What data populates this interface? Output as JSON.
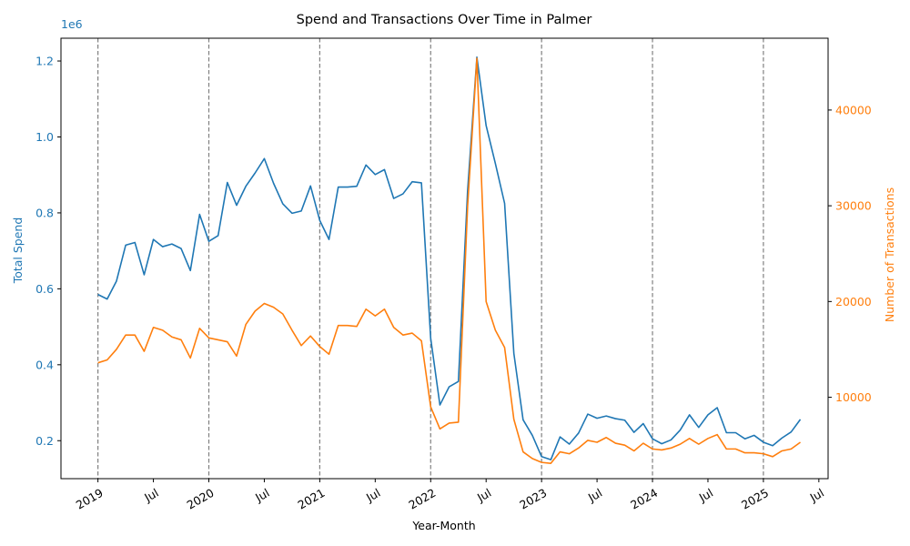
{
  "chart_data": {
    "type": "line",
    "title": "Spend and Transactions Over Time in Palmer",
    "xlabel": "Year-Month",
    "ylabel_left": "Total Spend",
    "ylabel_right": "Number of Transactions",
    "left_offset_label": "1e6",
    "colors": {
      "spend": "#1f77b4",
      "transactions": "#ff7f0e",
      "vline": "#808080",
      "axis": "#000000"
    },
    "ylim_left": [
      100000,
      1260000
    ],
    "ylim_right": [
      1500,
      47500
    ],
    "xlim": [
      "2018-09",
      "2025-08"
    ],
    "left_ticks": [
      {
        "value": 200000,
        "label": "0.2"
      },
      {
        "value": 400000,
        "label": "0.4"
      },
      {
        "value": 600000,
        "label": "0.6"
      },
      {
        "value": 800000,
        "label": "0.8"
      },
      {
        "value": 1000000,
        "label": "1.0"
      },
      {
        "value": 1200000,
        "label": "1.2"
      }
    ],
    "right_ticks": [
      {
        "value": 10000,
        "label": "10000"
      },
      {
        "value": 20000,
        "label": "20000"
      },
      {
        "value": 30000,
        "label": "30000"
      },
      {
        "value": 40000,
        "label": "40000"
      }
    ],
    "x_ticks": [
      {
        "date": "2019-01",
        "label": "2019"
      },
      {
        "date": "2019-07",
        "label": "Jul"
      },
      {
        "date": "2020-01",
        "label": "2020"
      },
      {
        "date": "2020-07",
        "label": "Jul"
      },
      {
        "date": "2021-01",
        "label": "2021"
      },
      {
        "date": "2021-07",
        "label": "Jul"
      },
      {
        "date": "2022-01",
        "label": "2022"
      },
      {
        "date": "2022-07",
        "label": "Jul"
      },
      {
        "date": "2023-01",
        "label": "2023"
      },
      {
        "date": "2023-07",
        "label": "Jul"
      },
      {
        "date": "2024-01",
        "label": "2024"
      },
      {
        "date": "2024-07",
        "label": "Jul"
      },
      {
        "date": "2025-01",
        "label": "2025"
      },
      {
        "date": "2025-07",
        "label": "Jul"
      }
    ],
    "vlines": [
      "2019-01",
      "2020-01",
      "2021-01",
      "2022-01",
      "2023-01",
      "2024-01",
      "2025-01"
    ],
    "x": [
      "2019-01",
      "2019-02",
      "2019-03",
      "2019-04",
      "2019-05",
      "2019-06",
      "2019-07",
      "2019-08",
      "2019-09",
      "2019-10",
      "2019-11",
      "2019-12",
      "2020-01",
      "2020-02",
      "2020-03",
      "2020-04",
      "2020-05",
      "2020-06",
      "2020-07",
      "2020-08",
      "2020-09",
      "2020-10",
      "2020-11",
      "2020-12",
      "2021-01",
      "2021-02",
      "2021-03",
      "2021-04",
      "2021-05",
      "2021-06",
      "2021-07",
      "2021-08",
      "2021-09",
      "2021-10",
      "2021-11",
      "2021-12",
      "2022-01",
      "2022-02",
      "2022-03",
      "2022-04",
      "2022-05",
      "2022-06",
      "2022-07",
      "2022-08",
      "2022-09",
      "2022-10",
      "2022-11",
      "2022-12",
      "2023-01",
      "2023-02",
      "2023-03",
      "2023-04",
      "2023-05",
      "2023-06",
      "2023-07",
      "2023-08",
      "2023-09",
      "2023-10",
      "2023-11",
      "2023-12",
      "2024-01",
      "2024-02",
      "2024-03",
      "2024-04",
      "2024-05",
      "2024-06",
      "2024-07",
      "2024-08",
      "2024-09",
      "2024-10",
      "2024-11",
      "2024-12",
      "2025-01",
      "2025-02",
      "2025-03",
      "2025-04",
      "2025-05",
      "2025-06"
    ],
    "series": [
      {
        "axis": "left",
        "values": [
          585000,
          573000,
          620000,
          715000,
          722000,
          637000,
          730000,
          711000,
          718000,
          706000,
          648000,
          796000,
          725000,
          740000,
          880000,
          820000,
          870000,
          905000,
          943000,
          878000,
          824000,
          799000,
          805000,
          871000,
          780000,
          730000,
          868000,
          868000,
          870000,
          926000,
          901000,
          914000,
          838000,
          850000,
          882000,
          879000,
          470000,
          294000,
          342000,
          356000,
          860000,
          1210000,
          1030000,
          930000,
          825000,
          430000,
          255000,
          214000,
          158000,
          150000,
          210000,
          191000,
          220000,
          270000,
          259000,
          265000,
          258000,
          254000,
          222000,
          245000,
          205000,
          192000,
          202000,
          228000,
          268000,
          235000,
          268000,
          287000,
          221000,
          221000,
          205000,
          214000,
          196000,
          187000,
          207000,
          223000,
          256000,
          null
        ]
      },
      {
        "axis": "right",
        "values": [
          13600,
          13900,
          15000,
          16500,
          16500,
          14800,
          17300,
          17000,
          16300,
          16000,
          14100,
          17200,
          16200,
          16000,
          15800,
          14300,
          17600,
          19000,
          19800,
          19400,
          18700,
          17000,
          15400,
          16400,
          15300,
          14500,
          17500,
          17500,
          17400,
          19200,
          18500,
          19200,
          17300,
          16500,
          16700,
          15900,
          9000,
          6700,
          7300,
          7400,
          30000,
          45400,
          20000,
          17000,
          15200,
          7700,
          4300,
          3600,
          3200,
          3100,
          4300,
          4100,
          4700,
          5500,
          5300,
          5800,
          5200,
          5000,
          4400,
          5200,
          4600,
          4500,
          4700,
          5100,
          5700,
          5100,
          5700,
          6100,
          4600,
          4600,
          4200,
          4200,
          4100,
          3800,
          4400,
          4600,
          5300,
          null
        ]
      }
    ]
  }
}
